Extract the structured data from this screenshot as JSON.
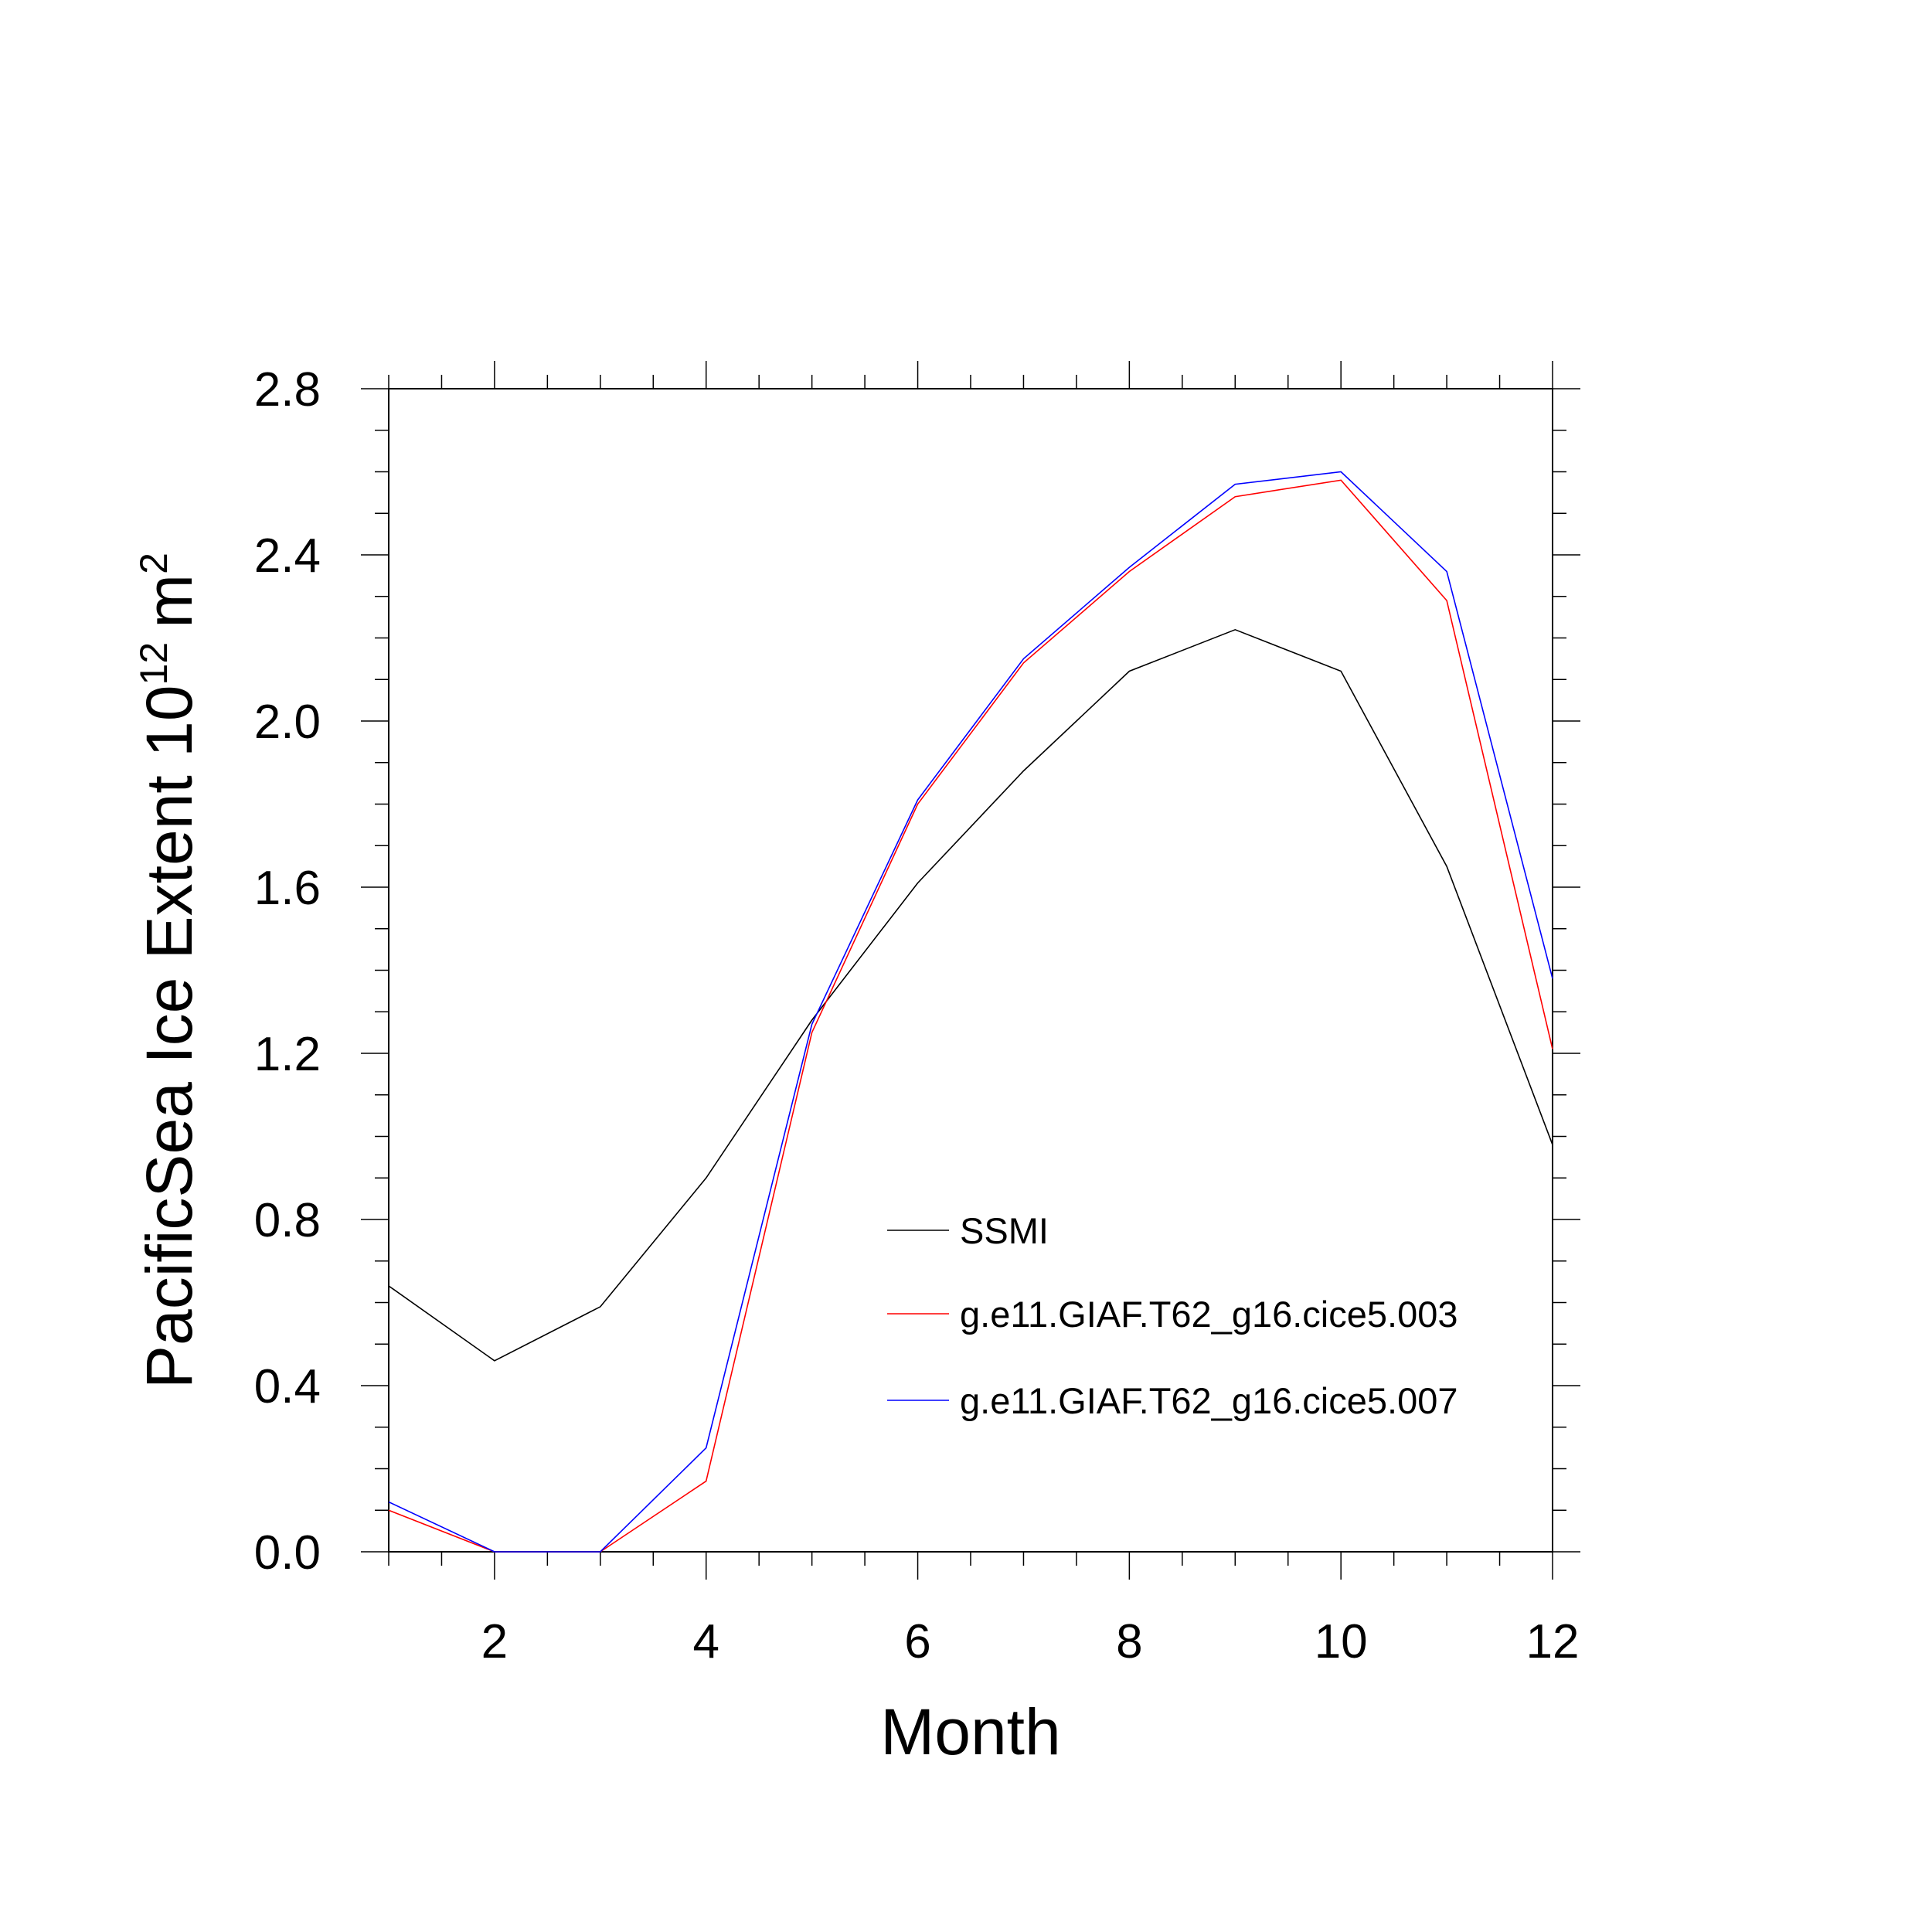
{
  "chart_data": {
    "type": "line",
    "xlabel": "Month",
    "ylabel": "PacificSea Ice Extent 10",
    "ylabel_superscript": "12",
    "ylabel_unit": "m",
    "ylabel_unit_superscript": "2",
    "xlim": [
      1,
      12
    ],
    "ylim": [
      0.0,
      2.8
    ],
    "x_ticks": [
      2,
      4,
      6,
      8,
      10,
      12
    ],
    "x_tick_labels": [
      "2",
      "4",
      "6",
      "8",
      "10",
      "12"
    ],
    "y_ticks": [
      0.0,
      0.4,
      0.8,
      1.2,
      1.6,
      2.0,
      2.4,
      2.8
    ],
    "y_tick_labels": [
      "0.0",
      "0.4",
      "0.8",
      "1.2",
      "1.6",
      "2.0",
      "2.4",
      "2.8"
    ],
    "grid": false,
    "legend_position": "lower-right inside plot",
    "x": [
      1,
      2,
      3,
      4,
      5,
      6,
      7,
      8,
      9,
      10,
      11,
      12
    ],
    "series": [
      {
        "name": "SSMI",
        "color": "#000000",
        "values": [
          0.64,
          0.46,
          0.59,
          0.9,
          1.28,
          1.61,
          1.88,
          2.12,
          2.22,
          2.12,
          1.65,
          0.98
        ]
      },
      {
        "name": "g.e11.GIAF.T62_g16.cice5.003",
        "color": "#ff0000",
        "values": [
          0.1,
          0.0,
          0.0,
          0.17,
          1.25,
          1.8,
          2.14,
          2.36,
          2.54,
          2.58,
          2.29,
          1.21
        ]
      },
      {
        "name": "g.e11.GIAF.T62_g16.cice5.007",
        "color": "#0000ff",
        "values": [
          0.12,
          0.0,
          0.0,
          0.25,
          1.27,
          1.81,
          2.15,
          2.37,
          2.57,
          2.6,
          2.36,
          1.38
        ]
      }
    ]
  }
}
